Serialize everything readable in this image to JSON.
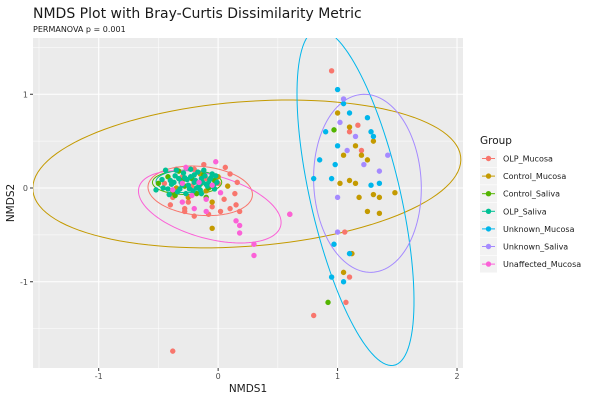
{
  "chart_data": {
    "type": "scatter",
    "title": "NMDS Plot with Bray-Curtis Dissimilarity Metric",
    "subtitle": "PERMANOVA p = 0.001",
    "xlabel": "NMDS1",
    "ylabel": "NMDS2",
    "xlim": [
      -1.55,
      2.05
    ],
    "ylim": [
      -1.92,
      1.6
    ],
    "xticks": [
      -1,
      0,
      1,
      2
    ],
    "yticks": [
      -1,
      0,
      1
    ],
    "xtick_labels": [
      "-1",
      "0",
      "1",
      "2"
    ],
    "ytick_labels": [
      "-1",
      "0",
      "1"
    ],
    "grid": true,
    "legend": {
      "title": "Group",
      "position": "right"
    },
    "series": [
      {
        "name": "OLP_Mucosa",
        "color": "#F8766D",
        "points": [
          [
            -0.45,
            0.05
          ],
          [
            -0.38,
            -0.1
          ],
          [
            -0.3,
            0.12
          ],
          [
            -0.25,
            -0.15
          ],
          [
            -0.2,
            0.2
          ],
          [
            -0.15,
            -0.05
          ],
          [
            -0.1,
            0.1
          ],
          [
            -0.05,
            -0.2
          ],
          [
            0.0,
            0.05
          ],
          [
            0.05,
            -0.12
          ],
          [
            0.1,
            0.15
          ],
          [
            -0.35,
            0.2
          ],
          [
            -0.28,
            -0.22
          ],
          [
            -0.12,
            0.25
          ],
          [
            0.02,
            -0.25
          ],
          [
            0.1,
            -0.22
          ],
          [
            0.15,
            -0.18
          ],
          [
            0.18,
            -0.25
          ],
          [
            0.14,
            -0.06
          ],
          [
            -0.4,
            -0.18
          ],
          [
            -0.22,
            0.02
          ],
          [
            -0.08,
            -0.28
          ],
          [
            0.06,
            0.22
          ],
          [
            0.16,
            0.06
          ],
          [
            0.6,
            -0.28
          ],
          [
            -0.28,
            -0.25
          ],
          [
            -0.2,
            -0.3
          ],
          [
            0.95,
            1.25
          ],
          [
            1.1,
            0.6
          ],
          [
            1.2,
            0.4
          ],
          [
            1.17,
            0.67
          ],
          [
            1.06,
            -0.47
          ],
          [
            1.1,
            -0.95
          ],
          [
            1.07,
            -1.22
          ],
          [
            0.8,
            -1.36
          ],
          [
            -0.38,
            -1.74
          ]
        ]
      },
      {
        "name": "Control_Mucosa",
        "color": "#C49A00",
        "points": [
          [
            -0.35,
            0.0
          ],
          [
            -0.2,
            0.07
          ],
          [
            -0.1,
            -0.03
          ],
          [
            0.0,
            0.12
          ],
          [
            -0.25,
            -0.1
          ],
          [
            -0.15,
            0.15
          ],
          [
            -0.05,
            -0.15
          ],
          [
            0.08,
            0.02
          ],
          [
            -0.05,
            -0.43
          ],
          [
            1.0,
            0.8
          ],
          [
            1.1,
            0.65
          ],
          [
            1.15,
            0.45
          ],
          [
            1.2,
            0.35
          ],
          [
            1.3,
            0.5
          ],
          [
            1.25,
            0.3
          ],
          [
            1.05,
            0.35
          ],
          [
            1.15,
            0.05
          ],
          [
            1.02,
            0.05
          ],
          [
            1.1,
            0.08
          ],
          [
            1.18,
            -0.1
          ],
          [
            1.3,
            -0.07
          ],
          [
            1.35,
            -0.1
          ],
          [
            1.48,
            -0.05
          ],
          [
            1.25,
            -0.25
          ],
          [
            1.35,
            -0.27
          ],
          [
            1.12,
            -0.7
          ],
          [
            1.05,
            -0.9
          ]
        ]
      },
      {
        "name": "Control_Saliva",
        "color": "#53B400",
        "points": [
          [
            -0.5,
            0.05
          ],
          [
            -0.42,
            0.12
          ],
          [
            -0.38,
            -0.05
          ],
          [
            -0.33,
            0.18
          ],
          [
            -0.28,
            0.02
          ],
          [
            -0.22,
            0.1
          ],
          [
            -0.18,
            -0.06
          ],
          [
            -0.12,
            0.14
          ],
          [
            -0.08,
            0.0
          ],
          [
            -0.03,
            0.08
          ],
          [
            -0.3,
            0.08
          ],
          [
            -0.15,
            0.04
          ],
          [
            -0.36,
            -0.08
          ],
          [
            -0.1,
            -0.1
          ],
          [
            0.97,
            0.62
          ],
          [
            0.92,
            -1.22
          ]
        ]
      },
      {
        "name": "OLP_Saliva",
        "color": "#00C094",
        "points": [
          [
            -0.52,
            -0.02
          ],
          [
            -0.47,
            0.09
          ],
          [
            -0.44,
            0.19
          ],
          [
            -0.41,
            -0.07
          ],
          [
            -0.39,
            0.04
          ],
          [
            -0.36,
            0.13
          ],
          [
            -0.34,
            -0.04
          ],
          [
            -0.31,
            0.06
          ],
          [
            -0.29,
            0.16
          ],
          [
            -0.27,
            -0.06
          ],
          [
            -0.25,
            0.03
          ],
          [
            -0.23,
            0.12
          ],
          [
            -0.21,
            -0.03
          ],
          [
            -0.19,
            0.08
          ],
          [
            -0.17,
            0.17
          ],
          [
            -0.15,
            -0.02
          ],
          [
            -0.13,
            0.06
          ],
          [
            -0.11,
            0.13
          ],
          [
            -0.09,
            0.02
          ],
          [
            -0.07,
            0.09
          ],
          [
            -0.05,
            0.15
          ],
          [
            -0.03,
            -0.01
          ],
          [
            -0.01,
            0.06
          ],
          [
            -0.46,
            0.0
          ],
          [
            -0.37,
            0.06
          ],
          [
            -0.32,
            -0.01
          ],
          [
            -0.26,
            0.09
          ],
          [
            -0.2,
            0.14
          ],
          [
            -0.14,
            0.1
          ],
          [
            -0.08,
            0.05
          ],
          [
            -0.33,
            0.1
          ],
          [
            -0.24,
            -0.01
          ],
          [
            -0.16,
            0.03
          ],
          [
            -0.06,
            0.11
          ],
          [
            -0.42,
            -0.01
          ],
          [
            -0.35,
            0.19
          ],
          [
            -0.23,
            0.2
          ],
          [
            -0.12,
            0.19
          ],
          [
            -0.02,
            0.13
          ],
          [
            -0.28,
            0.11
          ],
          [
            -0.18,
            0.0
          ],
          [
            -0.1,
            0.04
          ],
          [
            -0.4,
            0.08
          ],
          [
            -0.3,
            0.03
          ],
          [
            -0.2,
            0.06
          ],
          [
            -0.14,
            -0.06
          ],
          [
            -0.04,
            0.03
          ]
        ]
      },
      {
        "name": "Unknown_Mucosa",
        "color": "#00B6EB",
        "points": [
          [
            1.0,
            1.05
          ],
          [
            1.05,
            0.9
          ],
          [
            1.1,
            0.8
          ],
          [
            0.9,
            0.6
          ],
          [
            1.0,
            0.45
          ],
          [
            0.85,
            0.3
          ],
          [
            0.98,
            0.25
          ],
          [
            0.8,
            0.1
          ],
          [
            0.95,
            0.1
          ],
          [
            1.25,
            0.75
          ],
          [
            1.3,
            0.55
          ],
          [
            1.28,
            0.6
          ],
          [
            1.35,
            0.05
          ],
          [
            1.28,
            0.03
          ],
          [
            0.97,
            -0.6
          ],
          [
            1.1,
            -0.7
          ],
          [
            0.95,
            -0.95
          ],
          [
            1.05,
            -1.0
          ]
        ]
      },
      {
        "name": "Unknown_Saliva",
        "color": "#A58AFF",
        "points": [
          [
            1.05,
            0.95
          ],
          [
            1.02,
            0.7
          ],
          [
            1.0,
            -0.1
          ],
          [
            1.15,
            0.55
          ],
          [
            1.08,
            0.4
          ],
          [
            1.22,
            0.25
          ],
          [
            1.35,
            0.18
          ],
          [
            1.42,
            0.35
          ],
          [
            1.0,
            -0.47
          ]
        ]
      },
      {
        "name": "Unaffected_Mucosa",
        "color": "#FB61D7",
        "points": [
          [
            -0.38,
            -0.02
          ],
          [
            -0.3,
            0.05
          ],
          [
            -0.22,
            -0.08
          ],
          [
            -0.16,
            0.06
          ],
          [
            -0.1,
            -0.12
          ],
          [
            -0.05,
            0.03
          ],
          [
            0.02,
            -0.05
          ],
          [
            -0.27,
            0.22
          ],
          [
            0.15,
            -0.35
          ],
          [
            -0.3,
            -0.15
          ],
          [
            -0.2,
            -0.22
          ],
          [
            -0.1,
            -0.25
          ],
          [
            -0.02,
            0.28
          ],
          [
            0.18,
            -0.4
          ],
          [
            0.3,
            -0.6
          ],
          [
            0.18,
            -0.48
          ],
          [
            0.3,
            -0.72
          ],
          [
            0.6,
            -0.28
          ]
        ]
      }
    ],
    "ellipses": [
      {
        "group": "OLP_Mucosa",
        "center": [
          -0.15,
          -0.03
        ],
        "semi_axes": [
          0.44,
          0.26
        ],
        "angle_deg": -8
      },
      {
        "group": "Control_Mucosa",
        "center": [
          0.24,
          0.15
        ],
        "semi_axes": [
          1.8,
          0.77
        ],
        "angle_deg": 6
      },
      {
        "group": "Control_Saliva",
        "center": [
          -0.26,
          0.06
        ],
        "semi_axes": [
          0.29,
          0.13
        ],
        "angle_deg": 0
      },
      {
        "group": "OLP_Saliva",
        "center": [
          -0.26,
          0.07
        ],
        "semi_axes": [
          0.26,
          0.12
        ],
        "angle_deg": 0
      },
      {
        "group": "Unknown_Mucosa",
        "center": [
          1.15,
          -0.1
        ],
        "semi_axes": [
          1.82,
          0.38
        ],
        "angle_deg": 100
      },
      {
        "group": "Unknown_Saliva",
        "center": [
          1.25,
          0.05
        ],
        "semi_axes": [
          0.95,
          0.45
        ],
        "angle_deg": 92
      },
      {
        "group": "Unaffected_Mucosa",
        "center": [
          -0.07,
          -0.2
        ],
        "semi_axes": [
          0.63,
          0.33
        ],
        "angle_deg": -22
      }
    ]
  }
}
